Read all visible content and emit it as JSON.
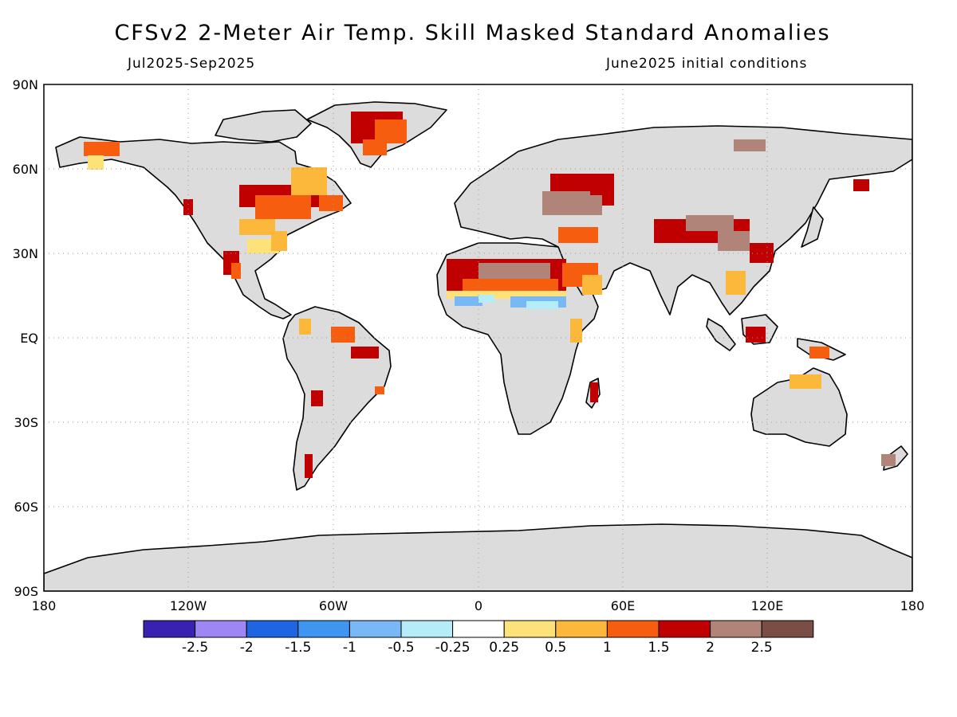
{
  "header": {
    "title": "CFSv2 2-Meter Air Temp. Skill Masked Standard Anomalies",
    "period": "Jul2025-Sep2025",
    "init": "June2025 initial conditions"
  },
  "axes": {
    "lat_ticks": [
      "90N",
      "60N",
      "30N",
      "EQ",
      "30S",
      "60S",
      "90S"
    ],
    "lon_ticks": [
      "180",
      "120W",
      "60W",
      "0",
      "60E",
      "120E",
      "180"
    ]
  },
  "colorbar": {
    "colors": [
      "#3a22b0",
      "#9e86f5",
      "#1f64e0",
      "#3f96f0",
      "#78b8f5",
      "#b4ecf8",
      "#ffffff",
      "#fde27a",
      "#fbb83b",
      "#f75d0f",
      "#c00000",
      "#b08478",
      "#7a4e44"
    ],
    "labels": [
      "-2.5",
      "-2",
      "-1.5",
      "-1",
      "-0.5",
      "-0.25",
      "0.25",
      "0.5",
      "1",
      "1.5",
      "2",
      "2.5"
    ]
  },
  "map_colors": {
    "land_masked": "#dcdcdc",
    "ocean": "#ffffff",
    "coastline": "#000000",
    "grid": "#999999"
  }
}
